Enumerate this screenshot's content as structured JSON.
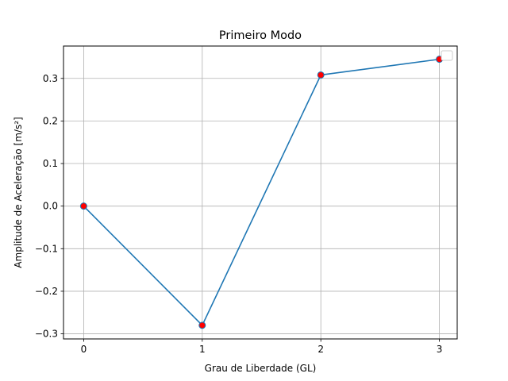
{
  "chart_data": {
    "type": "line",
    "title": "Primeiro Modo",
    "xlabel": "Grau de Liberdade (GL)",
    "ylabel": "Amplitude de Aceleração [m/s²]",
    "x": [
      0,
      1,
      2,
      3
    ],
    "series": [
      {
        "values": [
          0.0,
          -0.28,
          0.308,
          0.345
        ]
      }
    ],
    "xlim": [
      -0.17,
      3.15
    ],
    "ylim": [
      -0.312,
      0.376
    ],
    "xticks": [
      0,
      1,
      2,
      3
    ],
    "xtick_labels": [
      "0",
      "1",
      "2",
      "3"
    ],
    "yticks": [
      -0.3,
      -0.2,
      -0.1,
      0.0,
      0.1,
      0.2,
      0.3
    ],
    "ytick_labels": [
      "−0.3",
      "−0.2",
      "−0.1",
      "0.0",
      "0.1",
      "0.2",
      "0.3"
    ],
    "grid": true,
    "legend": "upper right (empty)",
    "colors": {
      "line": "#1f77b4",
      "marker_face": "#ff0000",
      "marker_edge": "#1f77b4",
      "grid": "#b0b0b0"
    }
  }
}
